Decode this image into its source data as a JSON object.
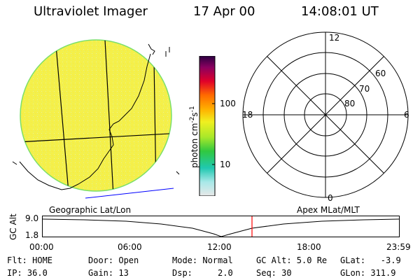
{
  "header": {
    "instrument": "Ultraviolet Imager",
    "date": "17 Apr 00",
    "time": "14:08:01 UT"
  },
  "colorbar": {
    "unit_label": "photon cm",
    "exp1": "-2",
    "s_label": "s",
    "exp2": "-1",
    "tick_100": "100",
    "tick_10": "10"
  },
  "polar_plot": {
    "mlt_labels": {
      "top": "12",
      "left": "18",
      "right": "6",
      "bottom": "0"
    },
    "lat_labels": [
      "60",
      "70",
      "80"
    ]
  },
  "timeline": {
    "left_title": "Geographic Lat/Lon",
    "right_title": "Apex MLat/MLT",
    "axis_label": "GC Alt",
    "y_ticks": [
      "9.0",
      "1.8"
    ],
    "x_ticks": [
      "00:00",
      "06:00",
      "12:00",
      "18:00",
      "23:59"
    ],
    "marker_color": "#ff0000"
  },
  "status": {
    "flt": "Flt: HOME",
    "ip": "IP: 36.0",
    "door": "Door: Open",
    "gain": "Gain: 13",
    "mode": "Mode: Normal",
    "dsp": "Dsp:     2.0",
    "gcalt": "GC Alt: 5.0 Re",
    "seq": "Seq: 30",
    "glat": "GLat:   -3.9",
    "glon": "GLon: 311.9"
  },
  "colors": {
    "disk_fill": "#f4f04a",
    "disk_edge": "#7adf6a",
    "limb_line": "#0000ff"
  }
}
